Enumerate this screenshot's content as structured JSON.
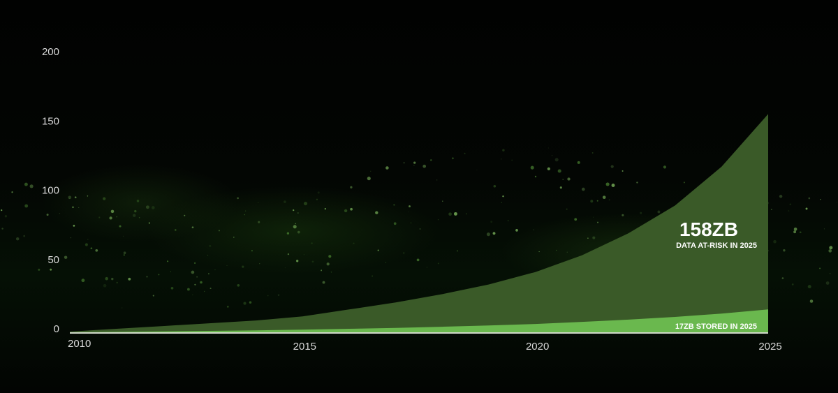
{
  "chart_data": {
    "type": "area",
    "title": "",
    "xlabel": "",
    "ylabel": "",
    "x": [
      2010,
      2011,
      2012,
      2013,
      2014,
      2015,
      2016,
      2017,
      2018,
      2019,
      2020,
      2021,
      2022,
      2023,
      2024,
      2025
    ],
    "xlim": [
      2010,
      2025
    ],
    "ylim": [
      0,
      200
    ],
    "x_ticks": [
      "2010",
      "2015",
      "2020",
      "2025"
    ],
    "y_ticks": [
      "0",
      "50",
      "100",
      "150",
      "200"
    ],
    "grid": false,
    "legend": "none",
    "series": [
      {
        "values": [
          1,
          3,
          5,
          7,
          9,
          12,
          17,
          22,
          28,
          35,
          44,
          56,
          72,
          92,
          120,
          158
        ],
        "color": "#3a5a28"
      },
      {
        "values": [
          0.5,
          0.8,
          1.1,
          1.5,
          1.9,
          2.4,
          3.0,
          3.7,
          4.5,
          5.4,
          6.5,
          8.0,
          9.6,
          11.6,
          14.0,
          17
        ],
        "color": "#6ab84e"
      }
    ],
    "annotations": {
      "at_risk_value": "158ZB",
      "at_risk_label": "DATA AT-RISK  IN 2025",
      "stored_label": "17ZB  STORED IN 2025"
    }
  }
}
